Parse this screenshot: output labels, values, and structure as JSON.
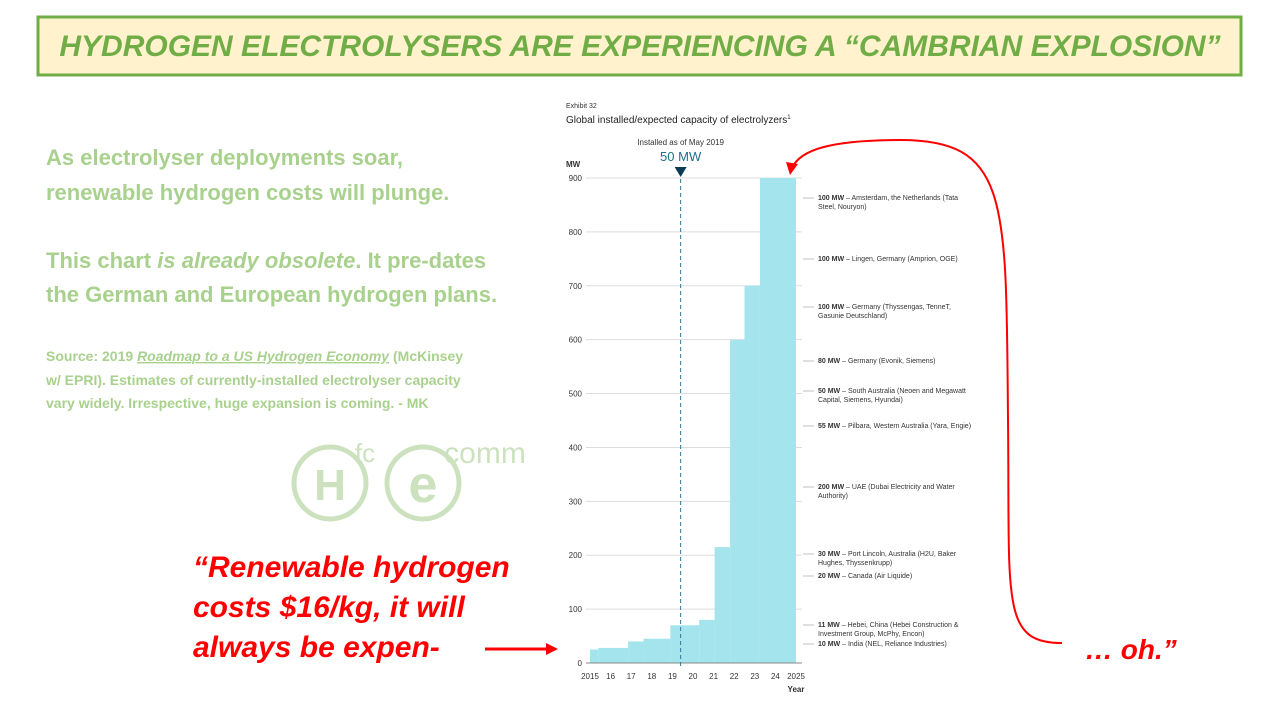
{
  "slide": {
    "title": "HYDROGEN ELECTROLYSERS ARE EXPERIENCING A “CAMBRIAN EXPLOSION”",
    "paragraph1": [
      "As electrolyser deployments soar,",
      "renewable hydrogen costs will plunge."
    ],
    "paragraph2": {
      "line1": [
        "This chart ",
        "is already obsolete",
        ". It pre-dates"
      ],
      "line2": "the German and European hydrogen plans."
    },
    "source": {
      "line1": [
        "Source: 2019 ",
        "Roadmap to a US Hydrogen Economy",
        " (McKinsey"
      ],
      "line2": "w/ EPRI). Estimates of currently-installed electrolyser capacity",
      "line3": "vary widely. Irrespective, huge expansion is coming. - MK"
    },
    "logo": {
      "h": "H",
      "fc": "fc",
      "e": "e",
      "comm": "comm"
    },
    "quote": [
      "“Renewable hydrogen",
      "costs $16/kg, it will",
      "always be expen-"
    ],
    "reply": "… oh.”"
  },
  "chart_data": {
    "type": "step",
    "exhibit": "Exhibit 32",
    "title": "Global installed/expected capacity of electrolyzers",
    "title_note": "1",
    "y_label": "MW",
    "x_label": "Year",
    "x": [
      2015,
      2015.4,
      2016.85,
      2017.6,
      2018.9,
      2020.3,
      2021.05,
      2021.8,
      2022.5,
      2023.25
    ],
    "values": [
      25,
      28,
      40,
      45,
      70,
      80,
      215,
      600,
      700,
      900
    ],
    "color": "#a4e4ec",
    "xlim": [
      2015,
      2025
    ],
    "xticks": [
      2015,
      {
        "value": 2016,
        "label": "16"
      },
      {
        "value": 2017,
        "label": "17"
      },
      {
        "value": 2018,
        "label": "18"
      },
      {
        "value": 2019,
        "label": "19"
      },
      {
        "value": 2020,
        "label": "20"
      },
      {
        "value": 2021,
        "label": "21"
      },
      {
        "value": 2022,
        "label": "22"
      },
      {
        "value": 2023,
        "label": "23"
      },
      {
        "value": 2024,
        "label": "24"
      },
      2025
    ],
    "ylim": [
      0,
      900
    ],
    "yticks": [
      0,
      100,
      200,
      300,
      400,
      500,
      600,
      700,
      800,
      900
    ],
    "grid": true,
    "marker": {
      "x": 2019.4,
      "caption": "Installed as of May 2019",
      "label": "50 MW"
    },
    "annotations": [
      {
        "bold": "100 MW",
        "lines": [
          " – Amsterdam, the Netherlands (Tata",
          "Steel, Nouryon)"
        ]
      },
      {
        "bold": "100 MW",
        "lines": [
          " – Lingen, Germany (Amprion, OGE)"
        ]
      },
      {
        "bold": "100 MW",
        "lines": [
          " – Germany (Thyssengas, TenneT,",
          "Gasunie Deutschland)"
        ]
      },
      {
        "bold": "80 MW",
        "lines": [
          " – Germany (Evonik, Siemens)"
        ]
      },
      {
        "bold": "50 MW",
        "lines": [
          " – South Australia (Neoen and Megawatt",
          "Capital, Siemens, Hyundai)"
        ]
      },
      {
        "bold": "55 MW",
        "lines": [
          " – Pilbara, Western Australia (Yara, Engie)"
        ]
      },
      {
        "bold": "200 MW",
        "lines": [
          " – UAE (Dubai Electricity and Water",
          "Authority)"
        ]
      },
      {
        "bold": "30 MW",
        "lines": [
          " – Port Lincoln, Australia (H2U, Baker",
          "Hughes, Thyssenkrupp)"
        ]
      },
      {
        "bold": "20 MW",
        "lines": [
          " – Canada (Air Liquide)"
        ]
      },
      {
        "bold": "11 MW",
        "lines": [
          " – Hebei, China (Hebei Construction &",
          "Investment Group, McPhy, Encon)"
        ]
      },
      {
        "bold": "10 MW",
        "lines": [
          " – India (NEL, Reliance Industries)"
        ]
      }
    ]
  }
}
